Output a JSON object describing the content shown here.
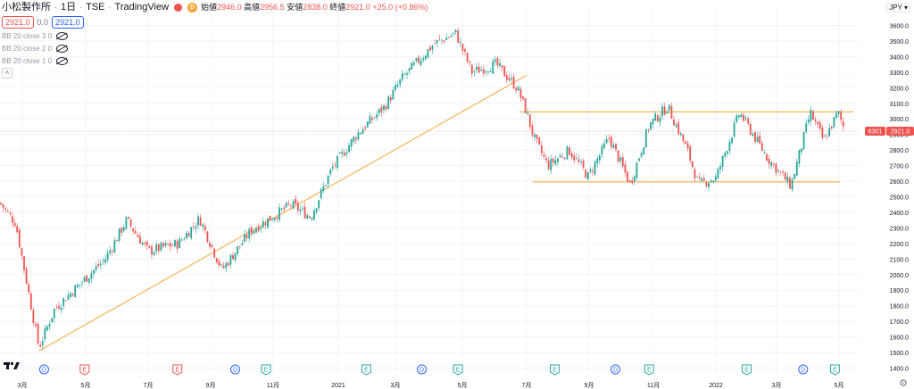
{
  "header": {
    "symbol_name": "小松製作所",
    "interval": "1日",
    "exchange": "TSE",
    "source": "TradingView",
    "open_label": "始値",
    "open": "2946.0",
    "high_label": "高値",
    "high": "2956.5",
    "low_label": "安値",
    "low": "2838.0",
    "close_label": "終値",
    "close": "2921.0",
    "change": "+25.0 (+0.86%)",
    "d_badge": "D"
  },
  "trade": {
    "sell": "2921.0",
    "spread": "0.0",
    "buy": "2921.0"
  },
  "indicators": [
    {
      "label": "BB 20 close 3 0"
    },
    {
      "label": "BB 20 close 2 0"
    },
    {
      "label": "BB 20 close 1 0"
    }
  ],
  "currency": "JPY",
  "collapse_icon": "chevron-up-icon",
  "price_tag": {
    "code": "6301",
    "value": "2921.0"
  },
  "colors": {
    "up": "#26a69a",
    "down": "#ef5350",
    "trendline": "#f7a535",
    "grid": "#f0f3fa",
    "text": "#131722"
  },
  "chart_data": {
    "type": "candlestick",
    "symbol": "6301",
    "current_price": 2921.0,
    "y_ticks": [
      1400,
      1500,
      1600,
      1700,
      1800,
      1900,
      2000,
      2100,
      2200,
      2300,
      2400,
      2500,
      2600,
      2700,
      2800,
      2900,
      3000,
      3100,
      3200,
      3300,
      3400,
      3500,
      3600
    ],
    "y_tick_labels": [
      "1400.0",
      "1500.0",
      "1600.0",
      "1700.0",
      "1800.0",
      "1900.0",
      "2000.0",
      "2100.0",
      "2200.0",
      "2300.0",
      "2400.0",
      "2500.0",
      "2600.0",
      "2700.0",
      "2800.0",
      "2900.0",
      "3000.0",
      "3100.0",
      "3200.0",
      "3300.0",
      "3400.0",
      "3500.0",
      "3600.0"
    ],
    "ylim": [
      1380,
      3660
    ],
    "x_labels": [
      "3月",
      "5月",
      "7月",
      "9月",
      "11月",
      "2021",
      "3月",
      "5月",
      "7月",
      "9月",
      "11月",
      "2022",
      "3月",
      "5月"
    ],
    "x_label_date": [
      "2020-03-01",
      "2020-05-01",
      "2020-07-01",
      "2020-09-01",
      "2020-11-01",
      "2021-01-01",
      "2021-03-01",
      "2021-05-01",
      "2021-07-01",
      "2021-09-01",
      "2021-11-01",
      "2022-01-01",
      "2022-03-01",
      "2022-05-01"
    ],
    "price_path": [
      {
        "date": "2020-01-01",
        "price": 2460
      },
      {
        "date": "2020-02-12",
        "price": 2330
      },
      {
        "date": "2020-03-17",
        "price": 1530
      },
      {
        "date": "2020-04-01",
        "price": 1780
      },
      {
        "date": "2020-05-20",
        "price": 2100
      },
      {
        "date": "2020-06-10",
        "price": 2350
      },
      {
        "date": "2020-07-01",
        "price": 2150
      },
      {
        "date": "2020-07-31",
        "price": 2200
      },
      {
        "date": "2020-08-21",
        "price": 2360
      },
      {
        "date": "2020-09-12",
        "price": 2030
      },
      {
        "date": "2020-10-10",
        "price": 2280
      },
      {
        "date": "2020-11-18",
        "price": 2450
      },
      {
        "date": "2020-12-06",
        "price": 2370
      },
      {
        "date": "2020-12-26",
        "price": 2680
      },
      {
        "date": "2021-01-20",
        "price": 2900
      },
      {
        "date": "2021-02-18",
        "price": 3080
      },
      {
        "date": "2021-03-07",
        "price": 3260
      },
      {
        "date": "2021-04-05",
        "price": 3480
      },
      {
        "date": "2021-04-25",
        "price": 3550
      },
      {
        "date": "2021-05-10",
        "price": 3300
      },
      {
        "date": "2021-06-02",
        "price": 3350
      },
      {
        "date": "2021-06-22",
        "price": 3200
      },
      {
        "date": "2021-07-01",
        "price": 3040
      },
      {
        "date": "2021-07-08",
        "price": 2880
      },
      {
        "date": "2021-07-22",
        "price": 2700
      },
      {
        "date": "2021-08-12",
        "price": 2800
      },
      {
        "date": "2021-08-31",
        "price": 2630
      },
      {
        "date": "2021-09-20",
        "price": 2880
      },
      {
        "date": "2021-10-10",
        "price": 2580
      },
      {
        "date": "2021-10-28",
        "price": 2960
      },
      {
        "date": "2021-11-15",
        "price": 3080
      },
      {
        "date": "2021-12-04",
        "price": 2800
      },
      {
        "date": "2021-12-15",
        "price": 2580
      },
      {
        "date": "2022-01-01",
        "price": 2620
      },
      {
        "date": "2022-01-24",
        "price": 3040
      },
      {
        "date": "2022-02-20",
        "price": 2750
      },
      {
        "date": "2022-03-15",
        "price": 2570
      },
      {
        "date": "2022-04-03",
        "price": 3040
      },
      {
        "date": "2022-04-16",
        "price": 2860
      },
      {
        "date": "2022-04-30",
        "price": 3040
      },
      {
        "date": "2022-05-07",
        "price": 2921
      }
    ],
    "trendlines": [
      {
        "kind": "ascending",
        "from": {
          "date": "2020-03-17",
          "price": 1510
        },
        "to": {
          "date": "2021-07-01",
          "price": 3280
        }
      },
      {
        "kind": "resistance",
        "from": {
          "date": "2021-06-24",
          "price": 3045
        },
        "to": {
          "date": "2022-05-15",
          "price": 3045
        }
      },
      {
        "kind": "support",
        "from": {
          "date": "2021-07-07",
          "price": 2595
        },
        "to": {
          "date": "2022-05-02",
          "price": 2595
        }
      }
    ],
    "events": [
      {
        "type": "D",
        "date": "2020-03-22"
      },
      {
        "type": "E",
        "date": "2020-04-30"
      },
      {
        "type": "E",
        "date": "2020-07-30"
      },
      {
        "type": "D",
        "date": "2020-09-25"
      },
      {
        "type": "E",
        "date": "2020-10-25"
      },
      {
        "type": "E",
        "date": "2021-01-30"
      },
      {
        "type": "D",
        "date": "2021-03-25"
      },
      {
        "type": "E",
        "date": "2021-04-27"
      },
      {
        "type": "E",
        "date": "2021-07-29"
      },
      {
        "type": "D",
        "date": "2021-09-26"
      },
      {
        "type": "E",
        "date": "2021-10-28"
      },
      {
        "type": "E",
        "date": "2022-01-31"
      },
      {
        "type": "D",
        "date": "2022-03-27"
      },
      {
        "type": "E",
        "date": "2022-04-27"
      }
    ]
  }
}
